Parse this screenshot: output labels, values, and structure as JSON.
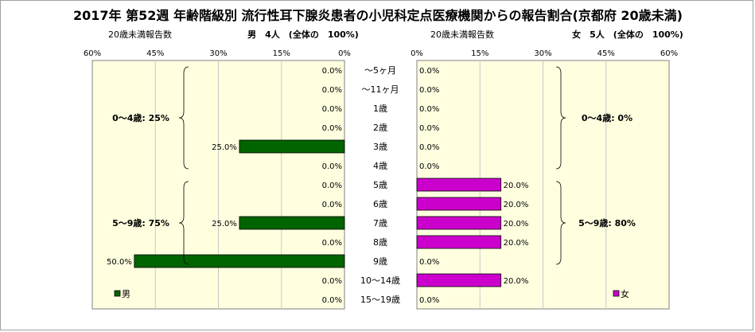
{
  "chart_data": {
    "type": "bar",
    "title": "2017年 第52週 年齢階級別 流行性耳下腺炎患者の小児科定点医療機関からの報告割合(京都府 20歳未満)",
    "categories": [
      "～5ヶ月",
      "～11ヶ月",
      "1歳",
      "2歳",
      "3歳",
      "4歳",
      "5歳",
      "6歳",
      "7歳",
      "8歳",
      "9歳",
      "10～14歳",
      "15～19歳"
    ],
    "xlim": [
      0,
      60
    ],
    "ticks": [
      "60%",
      "45%",
      "30%",
      "15%",
      "0%"
    ],
    "ticks_right": [
      "0%",
      "15%",
      "30%",
      "45%",
      "60%"
    ],
    "grid": true,
    "panels": [
      {
        "id": "male",
        "subtitle_left": "20歳未満報告数",
        "subtitle_main": "男　4人　(全体の　100%)",
        "legend": "男",
        "legend_position": "bottom-left",
        "color": "#006400",
        "values": [
          0,
          0,
          0,
          0,
          25,
          0,
          0,
          0,
          25,
          0,
          50,
          0,
          0
        ],
        "value_labels": [
          "0.0%",
          "0.0%",
          "0.0%",
          "0.0%",
          "25.0%",
          "0.0%",
          "0.0%",
          "0.0%",
          "25.0%",
          "0.0%",
          "50.0%",
          "0.0%",
          "0.0%"
        ],
        "groups": [
          {
            "label": "0～4歳: 25%",
            "from": 0,
            "to": 5
          },
          {
            "label": "5～9歳: 75%",
            "from": 6,
            "to": 10
          }
        ]
      },
      {
        "id": "female",
        "subtitle_left": "20歳未満報告数",
        "subtitle_main": "女　5人　(全体の　100%)",
        "legend": "女",
        "legend_position": "bottom-right",
        "color": "#cc00cc",
        "values": [
          0,
          0,
          0,
          0,
          0,
          0,
          20,
          20,
          20,
          20,
          0,
          20,
          0
        ],
        "value_labels": [
          "0.0%",
          "0.0%",
          "0.0%",
          "0.0%",
          "0.0%",
          "0.0%",
          "20.0%",
          "20.0%",
          "20.0%",
          "20.0%",
          "0.0%",
          "20.0%",
          "0.0%"
        ],
        "groups": [
          {
            "label": "0～4歳: 0%",
            "from": 0,
            "to": 5
          },
          {
            "label": "5～9歳: 80%",
            "from": 6,
            "to": 10
          }
        ]
      }
    ]
  }
}
